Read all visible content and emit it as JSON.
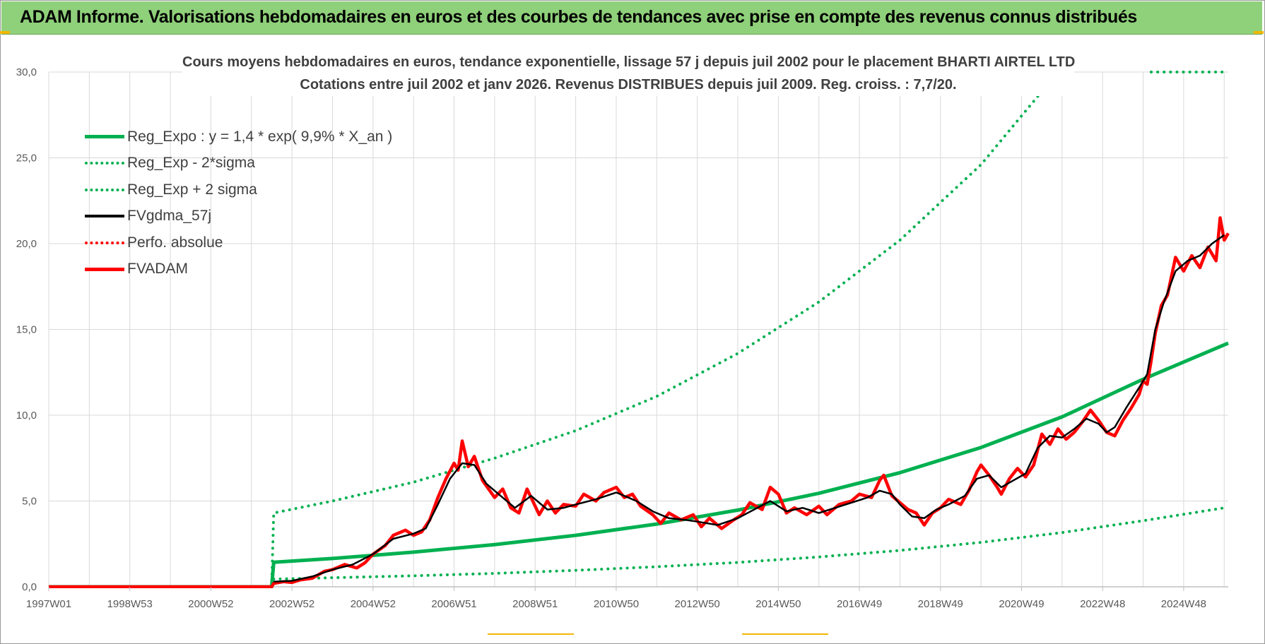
{
  "banner": {
    "title": "ADAM Informe. Valorisations hebdomadaires en euros et des courbes de tendances avec prise en compte des revenus connus distribués"
  },
  "colors": {
    "banner_bg": "#8fd07a",
    "reg_expo": "#00b050",
    "fvgdma": "#000000",
    "fvadam": "#ff0000",
    "grid": "#d9d9d9"
  },
  "chart_data": {
    "type": "line",
    "title": "Cours moyens hebdomadaires en euros, tendance exponentielle, lissage 57 j depuis juil 2002 pour le placement BHARTI AIRTEL LTD",
    "subtitle": "Cotations entre juil 2002 et janv 2026. Revenus DISTRIBUES depuis juil 2009. Reg. croiss. : 7,7/20.",
    "ylim": [
      0,
      30
    ],
    "y_ticks": [
      "0,0",
      "5,0",
      "10,0",
      "15,0",
      "20,0",
      "25,0",
      "30,0"
    ],
    "x_range": [
      1997.0,
      2026.1
    ],
    "x_ticks": [
      {
        "label": "1997W01",
        "x": 1997.0
      },
      {
        "label": "1998W53",
        "x": 1999.0
      },
      {
        "label": "2000W52",
        "x": 2001.0
      },
      {
        "label": "2002W52",
        "x": 2003.0
      },
      {
        "label": "2004W52",
        "x": 2005.0
      },
      {
        "label": "2006W51",
        "x": 2007.0
      },
      {
        "label": "2008W51",
        "x": 2009.0
      },
      {
        "label": "2010W50",
        "x": 2011.0
      },
      {
        "label": "2012W50",
        "x": 2013.0
      },
      {
        "label": "2014W50",
        "x": 2015.0
      },
      {
        "label": "2016W49",
        "x": 2017.0
      },
      {
        "label": "2018W49",
        "x": 2019.0
      },
      {
        "label": "2020W49",
        "x": 2021.0
      },
      {
        "label": "2022W48",
        "x": 2023.0
      },
      {
        "label": "2024W48",
        "x": 2025.0
      }
    ],
    "grid": true,
    "legend_position": "top-left",
    "legend": [
      {
        "label": "Reg_Expo : y = 1,4 * exp( 9,9% *  X_an )",
        "color": "#00b050",
        "style": "solid-thick"
      },
      {
        "label": "Reg_Exp - 2*sigma",
        "color": "#00b050",
        "style": "dotted"
      },
      {
        "label": "Reg_Exp + 2 sigma",
        "color": "#00b050",
        "style": "dotted"
      },
      {
        "label": "FVgdma_57j",
        "color": "#000000",
        "style": "solid"
      },
      {
        "label": "Perfo. absolue",
        "color": "#ff0000",
        "style": "dotted"
      },
      {
        "label": "FVADAM",
        "color": "#ff0000",
        "style": "solid-thick"
      }
    ],
    "series": [
      {
        "name": "Reg_Expo : y = 1,4 * exp( 9,9% *  X_an )",
        "x": [
          1997.0,
          2002.5,
          2002.55,
          2004,
          2006,
          2008,
          2010,
          2012,
          2014,
          2016,
          2018,
          2020,
          2022,
          2024,
          2026.1
        ],
        "values": [
          0,
          0,
          1.43,
          1.65,
          2.02,
          2.46,
          3.0,
          3.66,
          4.47,
          5.45,
          6.65,
          8.12,
          9.9,
          12.1,
          14.2
        ]
      },
      {
        "name": "Reg_Exp - 2*sigma",
        "x": [
          2002.55,
          2004,
          2006,
          2008,
          2010,
          2012,
          2014,
          2016,
          2018,
          2020,
          2022,
          2024,
          2026.0
        ],
        "values": [
          0.45,
          0.53,
          0.64,
          0.78,
          0.96,
          1.17,
          1.42,
          1.74,
          2.12,
          2.59,
          3.16,
          3.85,
          4.6
        ]
      },
      {
        "name": "Reg_Exp + 2 sigma",
        "x": [
          2002.5,
          2002.55,
          2004,
          2006,
          2008,
          2010,
          2012,
          2014,
          2016,
          2018,
          2020,
          2021.9
        ],
        "values": [
          0,
          4.3,
          5.0,
          6.1,
          7.5,
          9.1,
          11.1,
          13.6,
          16.6,
          20.2,
          24.6,
          30.0
        ]
      },
      {
        "name": "Reg_Exp + 2 sigma (cap)",
        "x": [
          2024.2,
          2026.1
        ],
        "values": [
          30.0,
          30.0
        ]
      },
      {
        "name": "FVgdma_57j",
        "x": [
          2002.55,
          2003.0,
          2003.5,
          2004.0,
          2004.5,
          2005.0,
          2005.5,
          2006.0,
          2006.3,
          2006.6,
          2006.9,
          2007.2,
          2007.5,
          2007.8,
          2008.1,
          2008.5,
          2008.9,
          2009.3,
          2009.7,
          2010.0,
          2010.5,
          2011.0,
          2011.5,
          2011.9,
          2012.3,
          2012.7,
          2013.0,
          2013.5,
          2014.0,
          2014.4,
          2014.8,
          2015.2,
          2015.6,
          2016.0,
          2016.4,
          2016.8,
          2017.2,
          2017.5,
          2017.8,
          2018.0,
          2018.3,
          2018.6,
          2018.9,
          2019.2,
          2019.6,
          2019.9,
          2020.2,
          2020.5,
          2020.8,
          2021.1,
          2021.4,
          2021.7,
          2022.0,
          2022.3,
          2022.6,
          2022.9,
          2023.1,
          2023.3,
          2023.6,
          2023.9,
          2024.1,
          2024.3,
          2024.5,
          2024.8,
          2025.1,
          2025.4,
          2025.7,
          2026.0
        ],
        "values": [
          0.3,
          0.35,
          0.6,
          1.0,
          1.3,
          1.9,
          2.8,
          3.1,
          3.4,
          4.8,
          6.3,
          7.2,
          7.1,
          6.0,
          5.4,
          4.6,
          5.3,
          4.5,
          4.6,
          4.8,
          5.1,
          5.5,
          5.0,
          4.4,
          4.0,
          3.9,
          3.8,
          3.6,
          4.0,
          4.5,
          5.0,
          4.4,
          4.6,
          4.3,
          4.6,
          4.9,
          5.2,
          5.6,
          5.4,
          4.8,
          4.1,
          4.0,
          4.5,
          4.8,
          5.3,
          6.3,
          6.5,
          5.8,
          6.2,
          6.6,
          8.1,
          8.8,
          8.7,
          9.2,
          9.8,
          9.5,
          9.0,
          9.3,
          10.5,
          11.6,
          12.4,
          15.0,
          16.5,
          18.4,
          19.0,
          19.3,
          20.0,
          20.5
        ]
      },
      {
        "name": "FVADAM",
        "x": [
          1997.0,
          2002.5,
          2002.55,
          2002.8,
          2003.0,
          2003.2,
          2003.5,
          2003.8,
          2004.0,
          2004.3,
          2004.6,
          2004.8,
          2005.0,
          2005.3,
          2005.5,
          2005.8,
          2006.0,
          2006.2,
          2006.4,
          2006.6,
          2006.8,
          2007.0,
          2007.1,
          2007.2,
          2007.35,
          2007.5,
          2007.7,
          2008.0,
          2008.2,
          2008.4,
          2008.6,
          2008.8,
          2008.9,
          2009.1,
          2009.3,
          2009.5,
          2009.7,
          2010.0,
          2010.2,
          2010.5,
          2010.7,
          2011.0,
          2011.2,
          2011.4,
          2011.6,
          2011.9,
          2012.1,
          2012.3,
          2012.6,
          2012.9,
          2013.1,
          2013.3,
          2013.6,
          2013.9,
          2014.1,
          2014.3,
          2014.6,
          2014.8,
          2015.0,
          2015.2,
          2015.4,
          2015.7,
          2016.0,
          2016.2,
          2016.5,
          2016.8,
          2017.0,
          2017.3,
          2017.5,
          2017.6,
          2017.8,
          2018.0,
          2018.2,
          2018.4,
          2018.6,
          2018.8,
          2019.0,
          2019.2,
          2019.5,
          2019.7,
          2019.9,
          2020.0,
          2020.2,
          2020.4,
          2020.5,
          2020.7,
          2020.9,
          2021.1,
          2021.3,
          2021.5,
          2021.7,
          2021.9,
          2022.1,
          2022.3,
          2022.5,
          2022.7,
          2022.9,
          2023.1,
          2023.3,
          2023.5,
          2023.7,
          2023.9,
          2024.0,
          2024.1,
          2024.2,
          2024.3,
          2024.45,
          2024.6,
          2024.8,
          2025.0,
          2025.2,
          2025.4,
          2025.6,
          2025.8,
          2025.9,
          2026.0,
          2026.1
        ],
        "values": [
          0,
          0,
          0.2,
          0.3,
          0.25,
          0.4,
          0.5,
          0.9,
          1.0,
          1.3,
          1.1,
          1.4,
          1.9,
          2.4,
          3.0,
          3.3,
          3.0,
          3.2,
          3.9,
          5.2,
          6.3,
          7.2,
          6.8,
          8.5,
          7.0,
          7.6,
          6.2,
          5.2,
          5.7,
          4.6,
          4.3,
          5.7,
          5.2,
          4.2,
          5.0,
          4.3,
          4.8,
          4.7,
          5.4,
          5.0,
          5.5,
          5.8,
          5.2,
          5.4,
          4.7,
          4.2,
          3.7,
          4.3,
          3.9,
          4.2,
          3.5,
          4.0,
          3.4,
          3.9,
          4.2,
          4.9,
          4.5,
          5.8,
          5.4,
          4.3,
          4.6,
          4.2,
          4.7,
          4.2,
          4.8,
          5.0,
          5.4,
          5.2,
          6.2,
          6.5,
          5.3,
          4.9,
          4.5,
          4.3,
          3.6,
          4.3,
          4.6,
          5.1,
          4.8,
          5.6,
          6.7,
          7.1,
          6.5,
          5.8,
          5.4,
          6.3,
          6.9,
          6.4,
          7.1,
          8.9,
          8.3,
          9.2,
          8.6,
          9.0,
          9.6,
          10.3,
          9.7,
          9.0,
          8.8,
          9.7,
          10.4,
          11.2,
          12.0,
          11.8,
          13.2,
          14.8,
          16.4,
          17.0,
          19.2,
          18.4,
          19.3,
          18.6,
          19.8,
          19.0,
          21.5,
          20.2,
          20.6
        ]
      }
    ]
  }
}
